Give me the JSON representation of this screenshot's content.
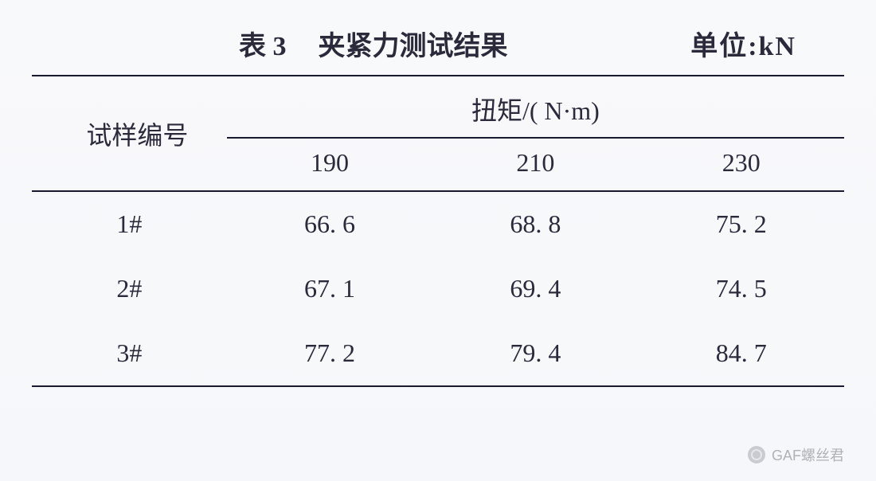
{
  "header": {
    "table_label": "表 3",
    "title": "夹紧力测试结果",
    "unit_label": "单位:kN"
  },
  "table": {
    "type": "table",
    "row_header_label": "试样编号",
    "spanner_label": "扭矩/( N·m)",
    "columns": [
      "190",
      "210",
      "230"
    ],
    "rows": [
      {
        "id": "1#",
        "values": [
          "66. 6",
          "68. 8",
          "75. 2"
        ]
      },
      {
        "id": "2#",
        "values": [
          "67. 1",
          "69. 4",
          "74. 5"
        ]
      },
      {
        "id": "3#",
        "values": [
          "77. 2",
          "79. 4",
          "84. 7"
        ]
      }
    ],
    "border_color": "#1a1a2e",
    "text_color": "#2a2a3a",
    "background_color": "#f8f9fb",
    "header_fontsize_pt": 26,
    "body_fontsize_pt": 24,
    "col_widths_pct": [
      24,
      25,
      25,
      26
    ]
  },
  "watermark": {
    "text": "GAF螺丝君"
  }
}
